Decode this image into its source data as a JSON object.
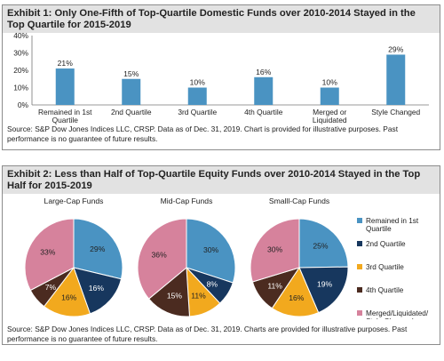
{
  "exhibit1": {
    "title": "Exhibit 1: Only One-Fifth of Top-Quartile Domestic Funds over 2010-2014 Stayed in the Top Quartile for 2015-2019",
    "source": "Source: S&P Dow Jones Indices LLC, CRSP. Data as of Dec. 31, 2019. Chart is provided for illustrative purposes. Past performance is no guarantee of future results."
  },
  "exhibit2": {
    "title": "Exhibit 2: Less than Half of Top-Quartile Equity Funds over 2010-2014 Stayed in the Top Half for 2015-2019",
    "source": "Source: S&P Dow Jones Indices LLC, CRSP. Data as of Dec. 31, 2019. Charts are provided for illustrative purposes. Past performance is no guarantee of future results."
  },
  "chart_data": [
    {
      "type": "bar",
      "categories": [
        "Remained in 1st Quartile",
        "2nd Quartile",
        "3rd Quartile",
        "4th Quartile",
        "Merged or Liquidated",
        "Style Changed"
      ],
      "category_lines": [
        [
          "Remained in 1st",
          "Quartile"
        ],
        [
          "2nd Quartile"
        ],
        [
          "3rd Quartile"
        ],
        [
          "4th Quartile"
        ],
        [
          "Merged or",
          "Liquidated"
        ],
        [
          "Style Changed"
        ]
      ],
      "values": [
        21,
        15,
        10,
        16,
        10,
        29
      ],
      "data_labels": [
        "21%",
        "15%",
        "10%",
        "16%",
        "10%",
        "29%"
      ],
      "yticks": [
        "0%",
        "10%",
        "20%",
        "30%",
        "40%"
      ],
      "ylim": [
        0,
        40
      ],
      "color": "#4a93c2",
      "grid": false
    },
    {
      "type": "pie",
      "title": "Large-Cap Funds",
      "labels": [
        "Remained in 1st Quartile",
        "2nd Quartile",
        "3rd Quartile",
        "4th Quartile",
        "Merged/Liquidated/Style Changed"
      ],
      "values": [
        29,
        16,
        16,
        7,
        33
      ],
      "data_labels": [
        "29%",
        "16%",
        "16%",
        "7%",
        "33%"
      ]
    },
    {
      "type": "pie",
      "title": "Mid-Cap Funds",
      "labels": [
        "Remained in 1st Quartile",
        "2nd Quartile",
        "3rd Quartile",
        "4th Quartile",
        "Merged/Liquidated/Style Changed"
      ],
      "values": [
        30,
        8,
        11,
        15,
        36
      ],
      "data_labels": [
        "30%",
        "8%",
        "11%",
        "15%",
        "36%"
      ]
    },
    {
      "type": "pie",
      "title": "Smalll-Cap Funds",
      "labels": [
        "Remained in 1st Quartile",
        "2nd Quartile",
        "3rd Quartile",
        "4th Quartile",
        "Merged/Liquidated/Style Changed"
      ],
      "values": [
        25,
        19,
        16,
        11,
        30
      ],
      "data_labels": [
        "25%",
        "19%",
        "16%",
        "11%",
        "30%"
      ]
    }
  ],
  "legend": {
    "placement": "right",
    "items": [
      {
        "lines": [
          "Remained in 1st",
          "Quartile"
        ],
        "color": "#4a93c2"
      },
      {
        "lines": [
          "2nd Quartile"
        ],
        "color": "#17375e"
      },
      {
        "lines": [
          "3rd Quartile"
        ],
        "color": "#f2a91e"
      },
      {
        "lines": [
          "4th Quartile"
        ],
        "color": "#4b2b20"
      },
      {
        "lines": [
          "Merged/Liquidated/",
          "Style Changed"
        ],
        "color": "#d6829c"
      }
    ]
  },
  "pie_colors": [
    "#4a93c2",
    "#17375e",
    "#f2a91e",
    "#4b2b20",
    "#d6829c"
  ],
  "label_colors": [
    "#222222",
    "#ffffff",
    "#222222",
    "#ffffff",
    "#222222"
  ]
}
